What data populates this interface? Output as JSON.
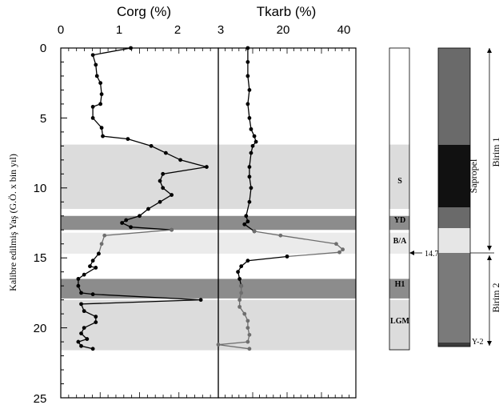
{
  "chart_data": {
    "type": "line",
    "y_axis": {
      "label": "Kalibre edilmiş Yaş  (G.Ö. x bin yıl)",
      "range": [
        0,
        25
      ],
      "ticks": [
        "0",
        "5",
        "10",
        "15",
        "20",
        "25"
      ],
      "inverted": true
    },
    "panels": [
      {
        "title": "Corg (%)",
        "xlim": [
          0,
          2.7
        ],
        "ticks": [
          "0",
          "1",
          "2"
        ],
        "series": [
          {
            "points": [
              [
                1.2,
                0
              ],
              [
                0.55,
                0.5
              ],
              [
                0.6,
                1.2
              ],
              [
                0.62,
                2
              ],
              [
                0.68,
                2.5
              ],
              [
                0.7,
                3.3
              ],
              [
                0.68,
                4
              ],
              [
                0.55,
                4.2
              ],
              [
                0.55,
                5
              ],
              [
                0.7,
                5.7
              ],
              [
                0.72,
                6.3
              ],
              [
                1.15,
                6.5
              ],
              [
                1.55,
                7
              ],
              [
                1.8,
                7.5
              ],
              [
                2.05,
                8
              ],
              [
                2.5,
                8.5
              ],
              [
                1.75,
                9
              ],
              [
                1.7,
                9.5
              ],
              [
                1.75,
                10
              ],
              [
                1.9,
                10.5
              ],
              [
                1.7,
                11
              ],
              [
                1.5,
                11.5
              ],
              [
                1.35,
                12
              ],
              [
                1.12,
                12.3
              ],
              [
                1.05,
                12.5
              ],
              [
                1.2,
                12.8
              ],
              [
                1.9,
                13
              ]
            ]
          },
          {
            "points": [
              [
                1.9,
                13
              ],
              [
                0.75,
                13.4
              ],
              [
                0.7,
                14
              ],
              [
                0.65,
                14.7
              ]
            ]
          },
          {
            "points": [
              [
                0.65,
                14.7
              ],
              [
                0.55,
                15.2
              ],
              [
                0.5,
                15.6
              ],
              [
                0.6,
                15.7
              ],
              [
                0.4,
                16.2
              ],
              [
                0.3,
                16.5
              ],
              [
                0.3,
                17
              ],
              [
                0.35,
                17.5
              ],
              [
                0.55,
                17.6
              ],
              [
                2.4,
                18
              ],
              [
                0.35,
                18.3
              ],
              [
                0.4,
                18.8
              ],
              [
                0.6,
                19.2
              ],
              [
                0.6,
                19.6
              ],
              [
                0.4,
                20
              ],
              [
                0.35,
                20.4
              ],
              [
                0.45,
                20.8
              ],
              [
                0.3,
                21
              ],
              [
                0.35,
                21.3
              ],
              [
                0.55,
                21.5
              ]
            ]
          }
        ]
      },
      {
        "title": "Tkarb (%)",
        "xlim": [
          3,
          45
        ],
        "ticks": [
          "3",
          "20",
          "40"
        ],
        "series": [
          {
            "points": [
              [
                12,
                0
              ],
              [
                12,
                1
              ],
              [
                12,
                2
              ],
              [
                12.5,
                3
              ],
              [
                12,
                4
              ],
              [
                12.5,
                5
              ],
              [
                13,
                5.8
              ],
              [
                14,
                6.3
              ],
              [
                14.5,
                6.7
              ],
              [
                13.5,
                7
              ],
              [
                13,
                7.5
              ],
              [
                12.5,
                8.5
              ],
              [
                12.5,
                9.2
              ],
              [
                13,
                10
              ],
              [
                12.5,
                11
              ],
              [
                11.5,
                12
              ],
              [
                12,
                12.4
              ],
              [
                11,
                12.6
              ],
              [
                14,
                13.1
              ]
            ]
          },
          {
            "points": [
              [
                14,
                13.1
              ],
              [
                22,
                13.4
              ],
              [
                39,
                14
              ],
              [
                41,
                14.4
              ],
              [
                40,
                14.6
              ],
              [
                24,
                14.9
              ]
            ]
          },
          {
            "points": [
              [
                24,
                14.9
              ],
              [
                12,
                15.2
              ],
              [
                10,
                15.6
              ],
              [
                9,
                16
              ],
              [
                9.5,
                16.5
              ],
              [
                10,
                17
              ]
            ]
          },
          {
            "points": [
              [
                10,
                17
              ],
              [
                10,
                17.5
              ],
              [
                9.5,
                18
              ],
              [
                9.5,
                18.5
              ],
              [
                11,
                19
              ],
              [
                12,
                19.5
              ],
              [
                12,
                20
              ],
              [
                12.5,
                20.5
              ],
              [
                12,
                21
              ],
              [
                3,
                21.2
              ],
              [
                12.5,
                21.5
              ]
            ]
          }
        ]
      }
    ],
    "bands": [
      {
        "label": "S",
        "from": 6.9,
        "to": 11.5,
        "color": "#dcdcdc"
      },
      {
        "label": "YD",
        "from": 12.0,
        "to": 13.0,
        "color": "#8c8c8c"
      },
      {
        "label": "B/A",
        "from": 13.2,
        "to": 14.7,
        "color": "#ebebeb"
      },
      {
        "label": "H1",
        "from": 16.5,
        "to": 17.9,
        "color": "#8c8c8c"
      },
      {
        "label": "LGM",
        "from": 18.0,
        "to": 21.6,
        "color": "#dcdcdc"
      }
    ],
    "boundary_label": "14.7",
    "lithology": {
      "label": "Sapropel",
      "units": [
        "Birim 1",
        "Birim 2"
      ],
      "bottom_label": "Y-2"
    }
  }
}
